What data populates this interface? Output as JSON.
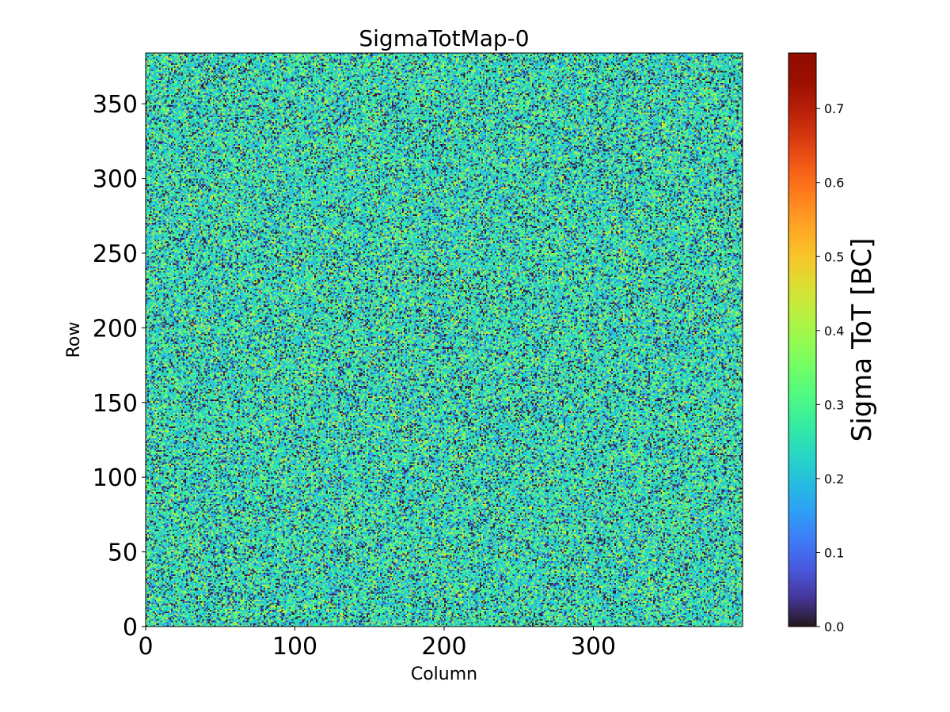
{
  "chart_data": {
    "type": "heatmap",
    "title": "SigmaTotMap-0",
    "xlabel": "Column",
    "ylabel": "Row",
    "xlim": [
      0,
      400
    ],
    "ylim": [
      0,
      384
    ],
    "x_ticks": [
      0,
      100,
      200,
      300
    ],
    "y_ticks": [
      0,
      50,
      100,
      150,
      200,
      250,
      300,
      350
    ],
    "colormap": "turbo",
    "colorbar": {
      "label": "Sigma ToT [BC]",
      "range": [
        0.0,
        0.775
      ],
      "ticks": [
        "0.0",
        "0.1",
        "0.2",
        "0.3",
        "0.4",
        "0.5",
        "0.6",
        "0.7"
      ]
    },
    "value_distribution": {
      "description": "random noise per pixel",
      "mean": 0.22,
      "min": 0.0,
      "max": 0.775,
      "dominant_values": [
        0.0,
        0.2,
        0.25,
        0.4
      ]
    }
  }
}
